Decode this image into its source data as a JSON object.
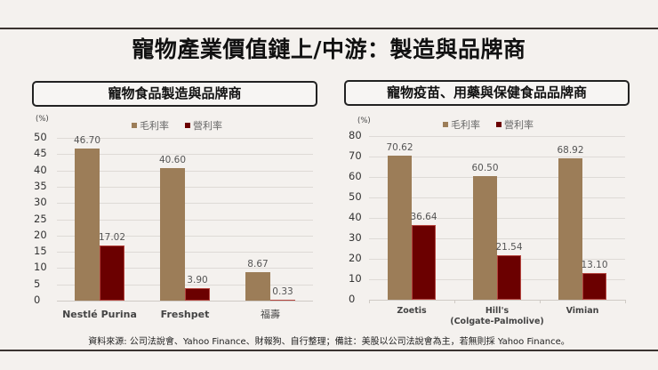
{
  "title": "寵物產業價值鏈上/中游：製造與品牌商",
  "source_note": "資料來源: 公司法說會、Yahoo Finance、財報狗、自行整理；備註：美股以公司法說會為主，若無則採 Yahoo Finance。",
  "colors": {
    "gross": "#9c7d58",
    "operating": "#6b0000",
    "background": "#f4f1ee"
  },
  "chart_data": [
    {
      "type": "bar",
      "title": "寵物食品製造與品牌商",
      "ylabel": "(%)",
      "ylim": [
        0,
        50
      ],
      "yticks": [
        0,
        5,
        10,
        15,
        20,
        25,
        30,
        35,
        40,
        45,
        50
      ],
      "legend": [
        "毛利率",
        "營利率"
      ],
      "categories": [
        "Nestlé Purina",
        "Freshpet",
        "福壽"
      ],
      "series": [
        {
          "name": "毛利率",
          "values": [
            46.7,
            40.6,
            8.67
          ],
          "labels": [
            "46.70",
            "40.60",
            "8.67"
          ]
        },
        {
          "name": "營利率",
          "values": [
            17.02,
            3.9,
            0.33
          ],
          "labels": [
            "17.02",
            "3.90",
            "0.33"
          ]
        }
      ],
      "grid": true,
      "legend_position": "top"
    },
    {
      "type": "bar",
      "title": "寵物疫苗、用藥與保健食品品牌商",
      "ylabel": "(%)",
      "ylim": [
        0,
        80
      ],
      "yticks": [
        0,
        10,
        20,
        30,
        40,
        50,
        60,
        70,
        80
      ],
      "legend": [
        "毛利率",
        "營利率"
      ],
      "categories": [
        "Zoetis",
        "Hill's\n(Colgate-Palmolive)",
        "Vimian"
      ],
      "series": [
        {
          "name": "毛利率",
          "values": [
            70.62,
            60.5,
            68.92
          ],
          "labels": [
            "70.62",
            "60.50",
            "68.92"
          ]
        },
        {
          "name": "營利率",
          "values": [
            36.64,
            21.54,
            13.1
          ],
          "labels": [
            "36.64",
            "21.54",
            "13.10"
          ]
        }
      ],
      "grid": true,
      "legend_position": "top"
    }
  ]
}
